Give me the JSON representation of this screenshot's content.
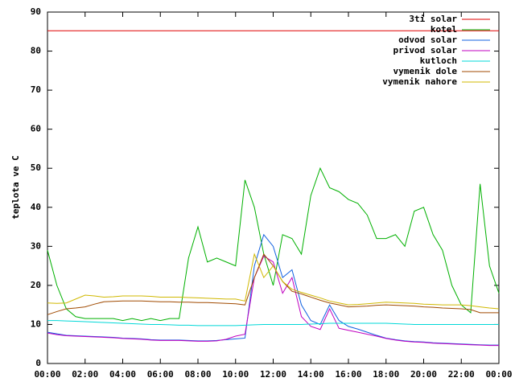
{
  "chart_data": {
    "type": "line",
    "y_label": "teplota ve C",
    "x": [
      0,
      0.5,
      1,
      1.5,
      2,
      2.5,
      3,
      3.5,
      4,
      4.5,
      5,
      5.5,
      6,
      6.5,
      7,
      7.5,
      8,
      8.5,
      9,
      9.5,
      10,
      10.5,
      11,
      11.5,
      12,
      12.5,
      13,
      13.5,
      14,
      14.5,
      15,
      15.5,
      16,
      16.5,
      17,
      17.5,
      18,
      18.5,
      19,
      19.5,
      20,
      20.5,
      21,
      21.5,
      22,
      22.5,
      23,
      23.5,
      24
    ],
    "xlim": [
      0,
      24
    ],
    "xticks": [
      {
        "value": 0,
        "label": "00:00"
      },
      {
        "value": 2,
        "label": "02:00"
      },
      {
        "value": 4,
        "label": "04:00"
      },
      {
        "value": 6,
        "label": "06:00"
      },
      {
        "value": 8,
        "label": "08:00"
      },
      {
        "value": 10,
        "label": "10:00"
      },
      {
        "value": 12,
        "label": "12:00"
      },
      {
        "value": 14,
        "label": "14:00"
      },
      {
        "value": 16,
        "label": "16:00"
      },
      {
        "value": 18,
        "label": "18:00"
      },
      {
        "value": 20,
        "label": "20:00"
      },
      {
        "value": 22,
        "label": "22:00"
      },
      {
        "value": 24,
        "label": "00:00"
      }
    ],
    "ylim": [
      0,
      90
    ],
    "yticks": [
      0,
      10,
      20,
      30,
      40,
      50,
      60,
      70,
      80,
      90
    ],
    "legend": "top-right",
    "series": [
      {
        "name": "3ti solar",
        "color": "#e00000",
        "values": [
          85.2,
          85.2,
          85.2,
          85.2,
          85.2,
          85.2,
          85.2,
          85.2,
          85.2,
          85.2,
          85.2,
          85.2,
          85.2,
          85.2,
          85.2,
          85.2,
          85.2,
          85.2,
          85.2,
          85.2,
          85.2,
          85.2,
          85.2,
          85.2,
          85.2,
          85.2,
          85.2,
          85.2,
          85.2,
          85.2,
          85.2,
          85.2,
          85.2,
          85.2,
          85.2,
          85.2,
          85.2,
          85.2,
          85.2,
          85.2,
          85.2,
          85.2,
          85.2,
          85.2,
          85.2,
          85.2,
          85.2,
          85.2,
          85.2
        ]
      },
      {
        "name": "kotel",
        "color": "#00b000",
        "values": [
          29,
          20,
          14,
          12,
          11.5,
          11.5,
          11.5,
          11.5,
          11,
          11.5,
          11,
          11.5,
          11,
          11.5,
          11.5,
          27,
          35,
          26,
          27,
          26,
          25,
          47,
          40,
          28,
          20,
          33,
          32,
          28,
          43,
          50,
          45,
          44,
          42,
          41,
          38,
          32,
          32,
          33,
          30,
          39,
          40,
          33,
          29,
          20,
          15,
          13,
          46,
          25,
          18
        ]
      },
      {
        "name": "odvod solar",
        "color": "#1060e0",
        "values": [
          8,
          7.6,
          7.2,
          7.1,
          7,
          6.9,
          6.8,
          6.7,
          6.5,
          6.4,
          6.3,
          6.1,
          6,
          6,
          6,
          5.9,
          5.8,
          5.8,
          5.9,
          6.1,
          6.3,
          6.5,
          25,
          33,
          30,
          22,
          24,
          15,
          11,
          10,
          15,
          11,
          9.5,
          8.8,
          8,
          7.2,
          6.5,
          6.1,
          5.8,
          5.6,
          5.5,
          5.3,
          5.2,
          5.1,
          5,
          4.9,
          4.8,
          4.7,
          4.7
        ]
      },
      {
        "name": "privod solar",
        "color": "#c000c0",
        "values": [
          7.8,
          7.4,
          7.1,
          7,
          6.9,
          6.8,
          6.7,
          6.6,
          6.4,
          6.3,
          6.2,
          6,
          5.9,
          5.9,
          5.9,
          5.8,
          5.7,
          5.7,
          5.8,
          6.2,
          7,
          7.5,
          22,
          27.5,
          26,
          18,
          22,
          12,
          9.5,
          8.7,
          14,
          9,
          8.5,
          8,
          7.5,
          7,
          6.4,
          6,
          5.7,
          5.5,
          5.4,
          5.2,
          5.1,
          5,
          4.9,
          4.8,
          4.7,
          4.6,
          4.6
        ]
      },
      {
        "name": "kutloch",
        "color": "#00d8d8",
        "values": [
          11,
          11,
          10.9,
          10.8,
          10.7,
          10.6,
          10.5,
          10.4,
          10.3,
          10.2,
          10.1,
          10,
          10,
          9.9,
          9.8,
          9.8,
          9.7,
          9.7,
          9.7,
          9.7,
          9.7,
          9.8,
          9.9,
          10,
          10,
          10,
          10,
          10,
          10.1,
          10.2,
          10.3,
          10.3,
          10.3,
          10.3,
          10.3,
          10.3,
          10.3,
          10.2,
          10.1,
          10,
          10,
          10,
          10,
          10,
          10,
          10,
          10,
          10,
          10
        ]
      },
      {
        "name": "vymenik dole",
        "color": "#a04a00",
        "values": [
          12.5,
          13.3,
          14,
          14.2,
          14.5,
          15.2,
          15.8,
          15.9,
          16,
          16,
          16,
          15.9,
          15.8,
          15.8,
          15.7,
          15.7,
          15.6,
          15.6,
          15.5,
          15.4,
          15.3,
          15,
          22,
          28,
          25,
          21,
          18.5,
          17.8,
          17,
          16.2,
          15.5,
          15,
          14.5,
          14.6,
          14.7,
          14.9,
          15,
          14.9,
          14.8,
          14.7,
          14.5,
          14.4,
          14.2,
          14.1,
          14,
          13.8,
          13,
          13,
          13
        ]
      },
      {
        "name": "vymenik nahore",
        "color": "#d0b800",
        "values": [
          15.5,
          15.4,
          15.5,
          16.5,
          17.5,
          17.3,
          17,
          17.1,
          17.3,
          17.3,
          17.3,
          17.2,
          17,
          17,
          17,
          16.9,
          16.8,
          16.7,
          16.6,
          16.5,
          16.5,
          16,
          28,
          22,
          25,
          21,
          19,
          18.2,
          17.5,
          16.8,
          16,
          15.5,
          15,
          15.1,
          15.3,
          15.5,
          15.7,
          15.6,
          15.5,
          15.4,
          15.2,
          15.1,
          15,
          15,
          15,
          14.8,
          14.5,
          14.2,
          14
        ]
      }
    ]
  }
}
